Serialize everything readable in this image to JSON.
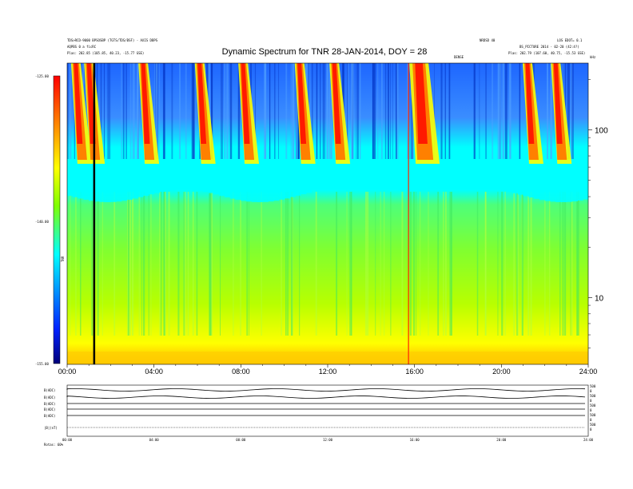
{
  "header": {
    "title": "Dynamic Spectrum for TNR 28-JAN-2014, DOY = 28",
    "left_line1": "TDS>RCD-9000 BPSOSBP (TGTS/TDS/BSF) - AXIS DBPS",
    "left_line2": "AQPBS 0 a ficRC",
    "left_line3": "Plas: 202.85 (105.85, 40.23, -15.77 GSE)",
    "center_small": "NRDSD 40",
    "right_line1": "LOS EDOT= 0.1",
    "right_line2": "BS_PICTURE 2014 - 02-20 (42:4?)",
    "right_line3": "Plas: 202.79 (107.60, 40.75, -15.53 GSE)",
    "center_mark": "DENSE",
    "corner_mark": "kHz"
  },
  "colorbar": {
    "top_label": "-125.00",
    "mid_label": "-140.00",
    "bottom_label": "-155.00",
    "axis_label": "TNR"
  },
  "chart_data": {
    "type": "heatmap",
    "title": "Dynamic Spectrum for TNR 28-JAN-2014, DOY = 28",
    "x_tick_labels": [
      "00:00",
      "04:00",
      "08:00",
      "12:00",
      "16:00",
      "20:00",
      "24:00"
    ],
    "xlim_hours": [
      0,
      24
    ],
    "y_scale": "log",
    "y_tick_labels": [
      "100",
      "10"
    ],
    "ylim_khz": [
      4,
      250
    ],
    "color_range_db": [
      -155,
      -125
    ],
    "colormap": [
      "#00007a",
      "#0022ff",
      "#00ffff",
      "#80ff00",
      "#ffff00",
      "#ff8000",
      "#ff0000"
    ],
    "vertical_marker_hours": 1.2,
    "bursts_hours": [
      0.4,
      1.0,
      3.5,
      6.1,
      8.1,
      10.7,
      12.3,
      16.2,
      21.2,
      22.5
    ]
  },
  "bottom_panel": {
    "row_labels": [
      "B(ADC)",
      "B(ADC)",
      "B(ADC)",
      "B(ADC)",
      "B(ADC)",
      "|B|(nT)"
    ],
    "right_labels": [
      "500",
      "0",
      "500",
      "0",
      "500",
      "0",
      "500",
      "0",
      "500",
      "0"
    ],
    "x_labels": [
      "00:00",
      "04:00",
      "08:00",
      "12:00",
      "16:00",
      "20:00",
      "24:00"
    ],
    "footer": "Rotas: 60%"
  }
}
